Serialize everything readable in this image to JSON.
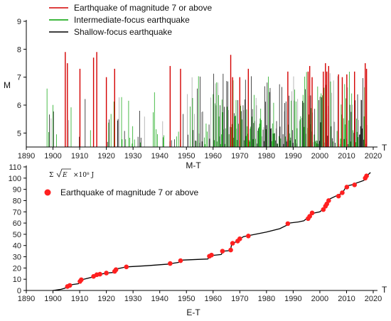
{
  "chart_data": [
    {
      "type": "bar",
      "title": "",
      "xlabel": "M-T",
      "x_axis_symbol": "T",
      "ylabel": "M",
      "xlim": [
        1890,
        2020
      ],
      "ylim": [
        4.5,
        9
      ],
      "baseline": 4.5,
      "x_ticks": [
        1890,
        1900,
        1910,
        1920,
        1930,
        1940,
        1950,
        1960,
        1970,
        1980,
        1990,
        2000,
        2010,
        2020
      ],
      "y_ticks": [
        5,
        6,
        7,
        8,
        9
      ],
      "legend_position": "top-left",
      "series": [
        {
          "name": "Earthquake of magnitude 7 or above",
          "color": "#d40000",
          "x": [
            1904.6,
            1905.4,
            1910.1,
            1915.2,
            1916.4,
            1920.0,
            1923.1,
            1943.9,
            1947.8,
            1966.6,
            1967.3,
            1970.0,
            1973.2,
            1988.0,
            1995.6,
            1996.2,
            1997.1,
            2001.3,
            2002.1,
            2002.6,
            2003.3,
            2007.0,
            2008.4,
            2010.1,
            2013.0,
            2017.0,
            2017.5
          ],
          "values": [
            7.9,
            7.5,
            7.3,
            7.7,
            7.9,
            7.0,
            7.3,
            7.4,
            7.3,
            7.8,
            7.0,
            7.0,
            7.3,
            7.2,
            7.2,
            7.4,
            7.0,
            7.2,
            7.5,
            7.2,
            7.4,
            7.1,
            7.0,
            7.1,
            7.2,
            7.5,
            7.3
          ]
        },
        {
          "name": "Intermediate-focus earthquake",
          "color": "#00a000"
        },
        {
          "name": "Shallow-focus earthquake",
          "color": "#000000"
        }
      ]
    },
    {
      "type": "line",
      "title": "",
      "xlabel": "E-T",
      "x_axis_symbol": "T",
      "ylabel": "",
      "y_annotation": {
        "prefix": "Σ",
        "radicand": "E",
        "suffix": "×10⁸ J"
      },
      "xlim": [
        1890,
        2020
      ],
      "ylim": [
        0,
        110
      ],
      "x_ticks": [
        1890,
        1900,
        1910,
        1920,
        1930,
        1940,
        1950,
        1960,
        1970,
        1980,
        1990,
        2000,
        2010,
        2020
      ],
      "y_ticks": [
        0,
        10,
        20,
        30,
        40,
        50,
        60,
        70,
        80,
        90,
        100,
        110
      ],
      "legend_position": "top-left",
      "series": [
        {
          "name": "",
          "color": "#000000",
          "x": [
            1900,
            1903,
            1904.5,
            1905.5,
            1906.5,
            1909.5,
            1910.5,
            1911.5,
            1915,
            1916,
            1919,
            1920,
            1922.5,
            1923.5,
            1925.5,
            1927.5,
            1935,
            1943.5,
            1944.5,
            1947,
            1948,
            1958,
            1959,
            1963,
            1964,
            1966.5,
            1967,
            1969,
            1970,
            1971.5,
            1980,
            1985,
            1987.5,
            1988.5,
            1992,
            1994,
            1995,
            1996,
            1997,
            1998,
            2000,
            2001,
            2002,
            2002.7,
            2003.3,
            2006,
            2007,
            2008.5,
            2009.5,
            2010,
            2012,
            2013,
            2016.5,
            2017,
            2018,
            2018.5,
            2019
          ],
          "values": [
            0,
            1,
            2,
            4,
            5,
            6,
            9,
            10,
            12,
            14,
            15,
            15.5,
            16,
            19,
            20,
            21,
            22,
            23.5,
            24,
            25,
            27,
            28,
            31,
            32,
            35,
            35.5,
            42,
            43.5,
            46,
            48,
            52,
            55,
            58,
            60,
            61,
            62,
            64,
            66,
            68,
            69,
            70,
            72,
            75,
            78,
            81,
            84,
            85,
            87,
            91,
            93,
            94,
            95,
            98,
            100,
            103,
            104,
            105
          ]
        },
        {
          "name": "Earthquake of magnitude 7 or above",
          "color": "#ff2020",
          "x": [
            1905.4,
            1906.3,
            1910.1,
            1910.6,
            1915.2,
            1916.4,
            1917.6,
            1920.0,
            1923.1,
            1923.6,
            1927.5,
            1943.9,
            1947.8,
            1958.6,
            1959.4,
            1963.5,
            1966.6,
            1967.3,
            1969.2,
            1970.0,
            1973.2,
            1988.0,
            1995.6,
            1996.2,
            1997.1,
            2001.3,
            2002.1,
            2002.6,
            2003.3,
            2007.0,
            2008.4,
            2010.1,
            2013.0,
            2017.0,
            2017.5
          ],
          "values": [
            3.5,
            4.5,
            8,
            9.5,
            12.5,
            14,
            14.5,
            15.5,
            17,
            18.5,
            21,
            24,
            26.5,
            30.5,
            31.5,
            35,
            36,
            42,
            44,
            46,
            48.5,
            59.5,
            64,
            66,
            69,
            72,
            75,
            77,
            80,
            84,
            87,
            92,
            94,
            100,
            102
          ]
        }
      ]
    }
  ]
}
